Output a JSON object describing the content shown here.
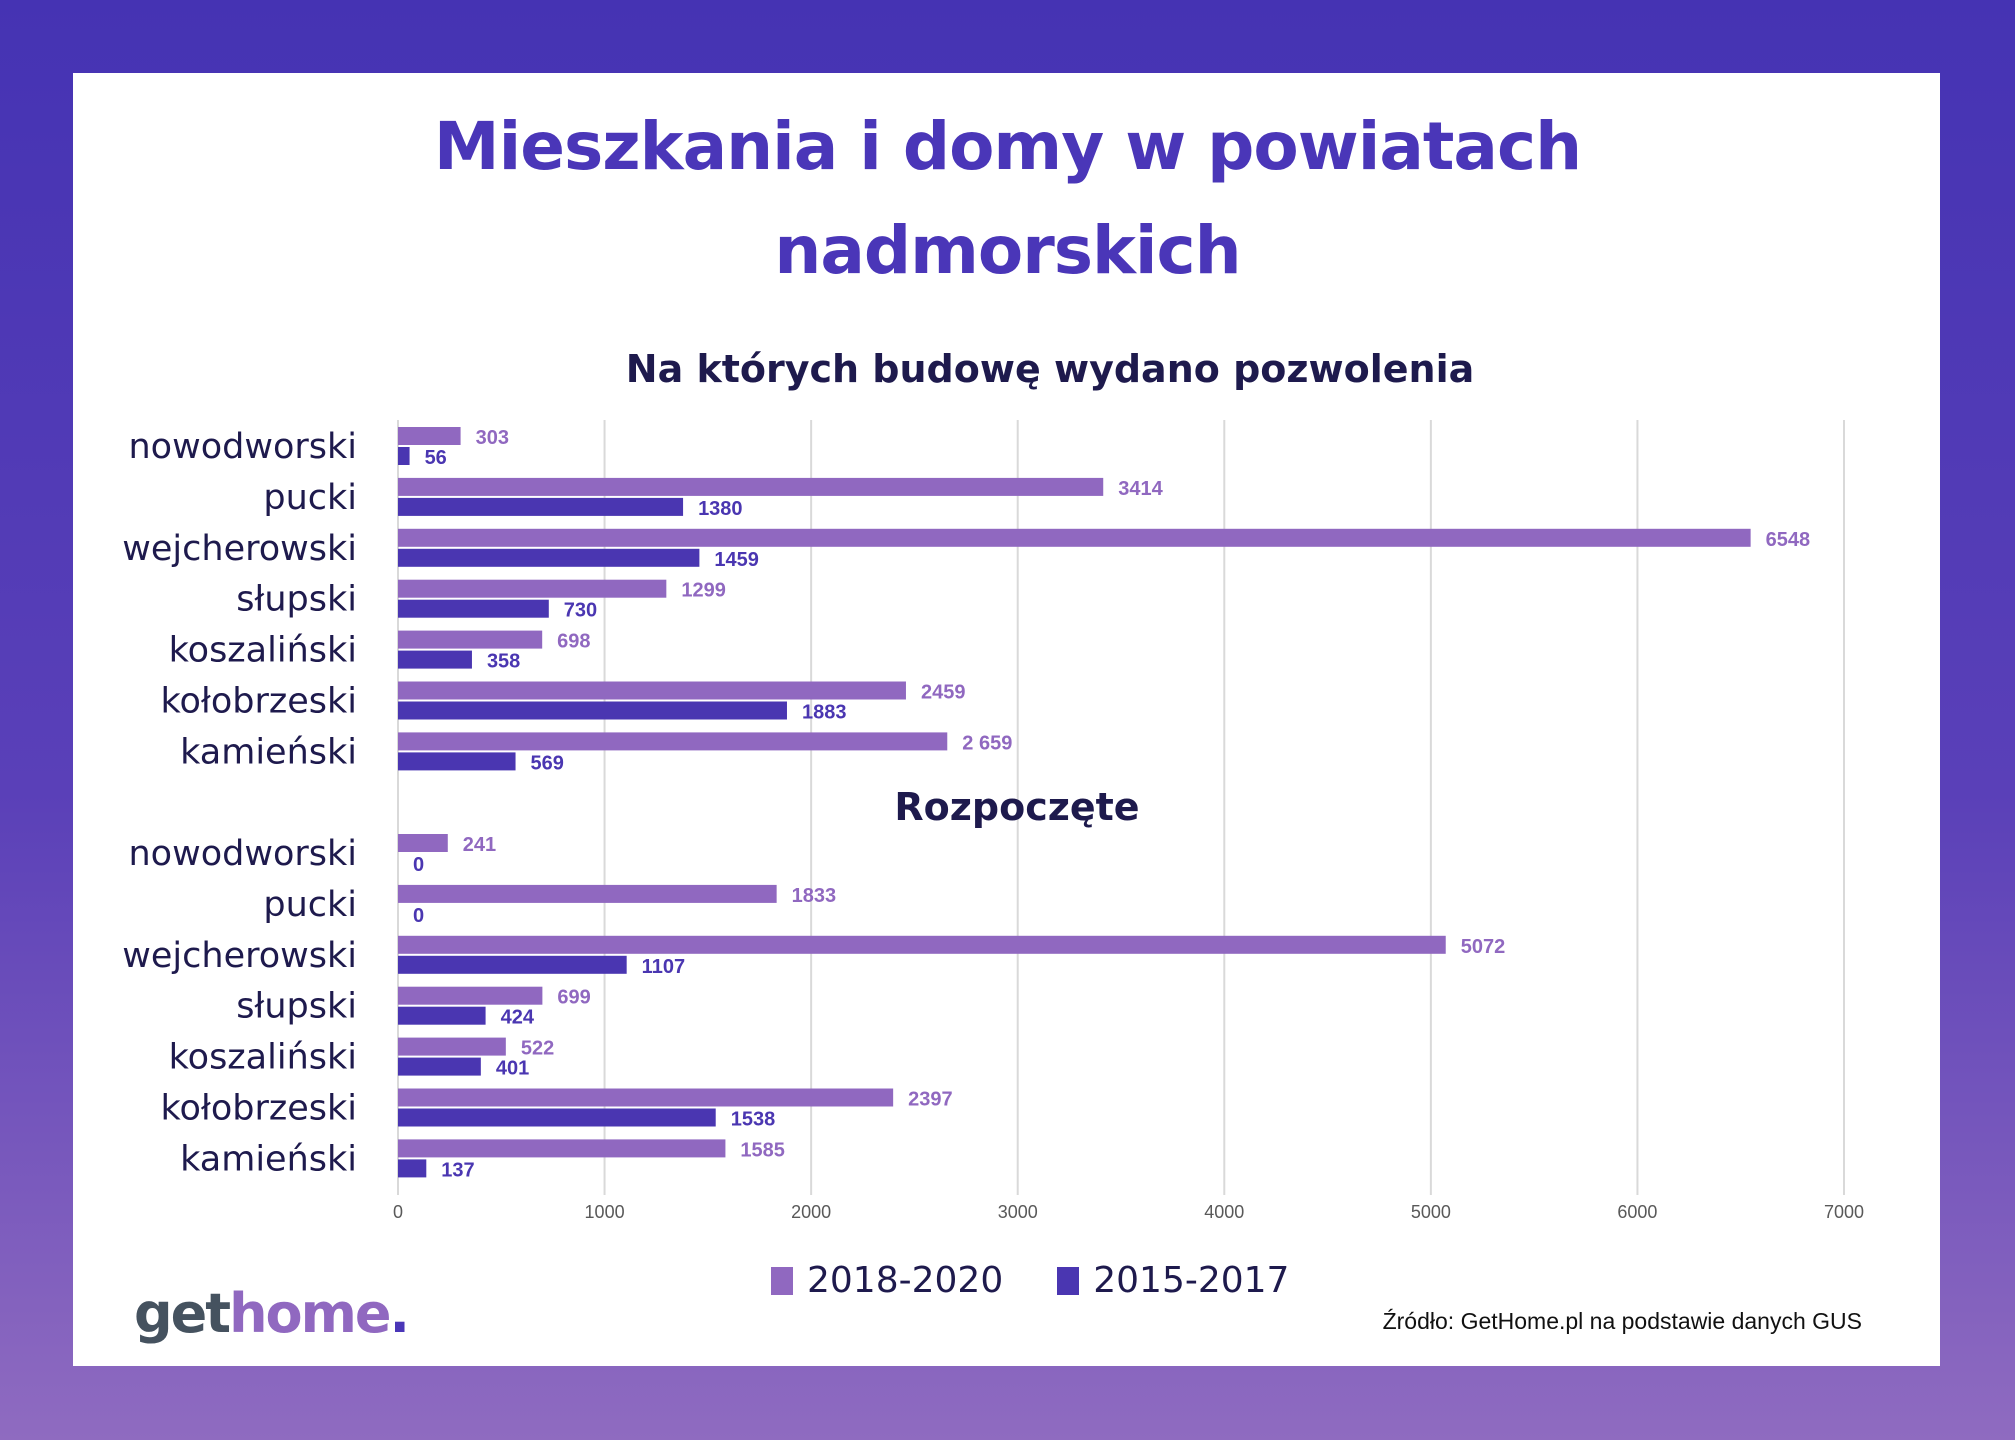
{
  "title_line1": "Mieszkania i domy w powiatach",
  "title_line2": "nadmorskich",
  "source": "Źródło: GetHome.pl na podstawie danych GUS",
  "logo": {
    "part1": "get",
    "part2": "home",
    "part3": "."
  },
  "colors": {
    "series_2018_2020": "#9068c0",
    "series_2015_2017": "#4a36b1",
    "label_text": "#1e1a4d",
    "title": "#4a36b8"
  },
  "chart_data": {
    "type": "bar",
    "orientation": "horizontal",
    "xlim": [
      0,
      7000
    ],
    "x_ticks": [
      "0",
      "1000",
      "2000",
      "3000",
      "4000",
      "5000",
      "6000",
      "7000"
    ],
    "grid": true,
    "legend": {
      "placement": "bottom",
      "entries": [
        "2018-2020",
        "2015-2017"
      ]
    },
    "panels": [
      {
        "title": "Na których budowę wydano pozwolenia",
        "categories": [
          "nowodworski",
          "pucki",
          "wejcherowski",
          "słupski",
          "koszaliński",
          "kołobrzeski",
          "kamieński"
        ],
        "series": [
          {
            "name": "2018-2020",
            "values": [
              303,
              3414,
              6548,
              1299,
              698,
              2459,
              2659
            ],
            "labels": [
              "303",
              "3414",
              "6548",
              "1299",
              "698",
              "2459",
              "2 659"
            ]
          },
          {
            "name": "2015-2017",
            "values": [
              56,
              1380,
              1459,
              730,
              358,
              1883,
              569
            ],
            "labels": [
              "56",
              "1380",
              "1459",
              "730",
              "358",
              "1883",
              "569"
            ]
          }
        ]
      },
      {
        "title": "Rozpoczęte",
        "categories": [
          "nowodworski",
          "pucki",
          "wejcherowski",
          "słupski",
          "koszaliński",
          "kołobrzeski",
          "kamieński"
        ],
        "series": [
          {
            "name": "2018-2020",
            "values": [
              241,
              1833,
              5072,
              699,
              522,
              2397,
              1585
            ],
            "labels": [
              "241",
              "1833",
              "5072",
              "699",
              "522",
              "2397",
              "1585"
            ]
          },
          {
            "name": "2015-2017",
            "values": [
              0,
              0,
              1107,
              424,
              401,
              1538,
              137
            ],
            "labels": [
              "0",
              "0",
              "1107",
              "424",
              "401",
              "1538",
              "137"
            ]
          }
        ]
      }
    ]
  }
}
